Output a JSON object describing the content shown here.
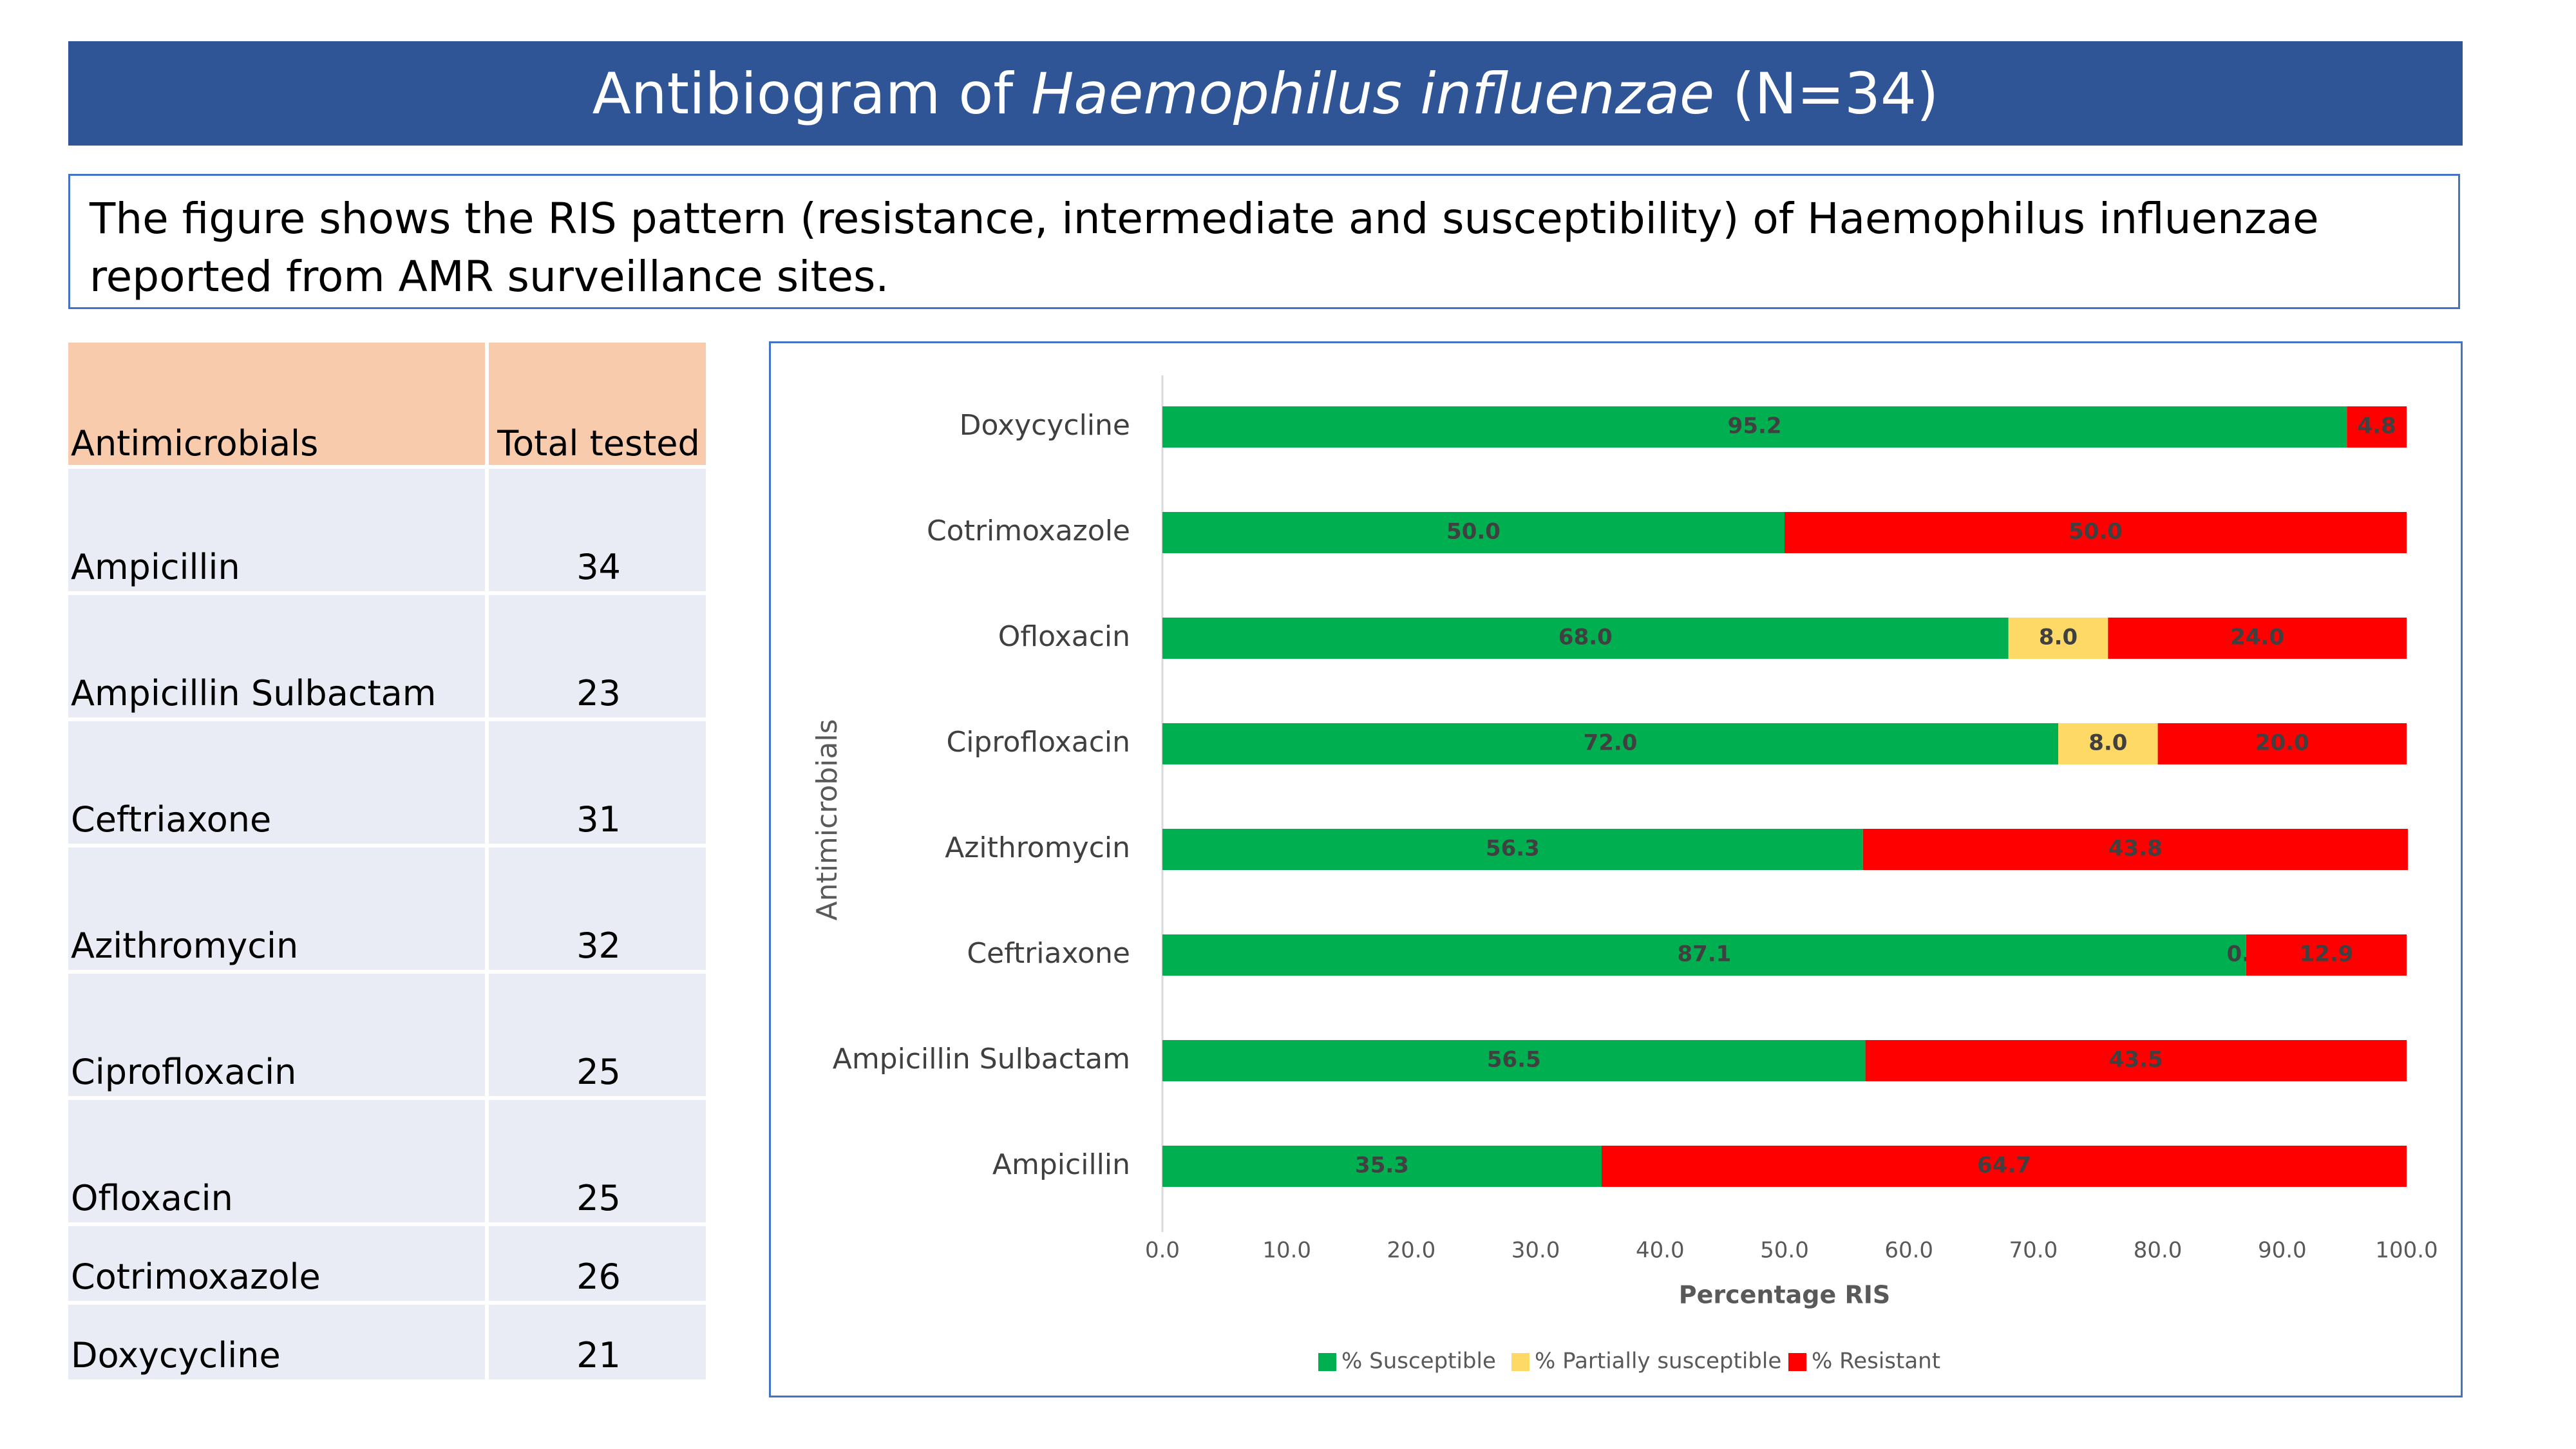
{
  "title": {
    "prefix": "Antibiogram of ",
    "organism": "Haemophilus influenzae",
    "suffix": " (N=34)"
  },
  "description": "The figure shows the RIS pattern (resistance, intermediate and susceptibility) of Haemophilus influenzae reported from AMR surveillance sites.",
  "table": {
    "headers": [
      "Antimicrobials",
      "Total tested"
    ],
    "rows": [
      {
        "name": "Ampicillin",
        "total": "34"
      },
      {
        "name": "Ampicillin Sulbactam",
        "total": "23"
      },
      {
        "name": "Ceftriaxone",
        "total": "31"
      },
      {
        "name": "Azithromycin",
        "total": "32"
      },
      {
        "name": "Ciprofloxacin",
        "total": "25"
      },
      {
        "name": "Ofloxacin",
        "total": "25"
      },
      {
        "name": "Cotrimoxazole",
        "total": "26"
      },
      {
        "name": "Doxycycline",
        "total": "21"
      }
    ]
  },
  "chart_data": {
    "type": "bar",
    "orientation": "horizontal",
    "stacked": true,
    "categories": [
      "Doxycycline",
      "Cotrimoxazole",
      "Ofloxacin",
      "Ciprofloxacin",
      "Azithromycin",
      "Ceftriaxone",
      "Ampicillin Sulbactam",
      "Ampicillin"
    ],
    "series": [
      {
        "name": "% Susceptible",
        "color": "#00b050",
        "values": [
          95.2,
          50.0,
          68.0,
          72.0,
          56.3,
          87.1,
          56.5,
          35.3
        ],
        "labels": [
          "95.2",
          "50.0",
          "68.0",
          "72.0",
          "56.3",
          "87.1",
          "56.5",
          "35.3"
        ]
      },
      {
        "name": "% Partially susceptible",
        "color": "#ffd966",
        "values": [
          0,
          0,
          8.0,
          8.0,
          0,
          0.0,
          0,
          0
        ],
        "labels": [
          "",
          "",
          "8.0",
          "8.0",
          "",
          "0.0",
          "",
          ""
        ]
      },
      {
        "name": "% Resistant",
        "color": "#ff0000",
        "values": [
          4.8,
          50.0,
          24.0,
          20.0,
          43.8,
          12.9,
          43.5,
          64.7
        ],
        "labels": [
          "4.8",
          "50.0",
          "24.0",
          "20.0",
          "43.8",
          "12.9",
          "43.5",
          "64.7"
        ]
      }
    ],
    "x_ticks": [
      "0.0",
      "10.0",
      "20.0",
      "30.0",
      "40.0",
      "50.0",
      "60.0",
      "70.0",
      "80.0",
      "90.0",
      "100.0"
    ],
    "xlim": [
      0,
      100
    ],
    "xlabel": "Percentage RIS",
    "ylabel": "Antimicrobials",
    "legend": "bottom",
    "grid": false
  }
}
